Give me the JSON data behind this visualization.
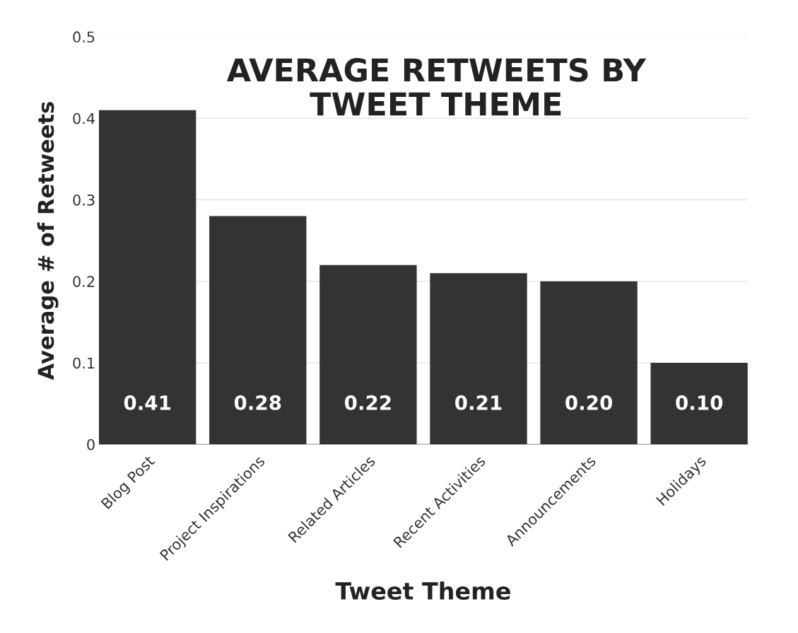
{
  "chart_data": {
    "type": "bar",
    "title": "AVERAGE RETWEETS BY\nTWEET THEME",
    "xlabel": "Tweet Theme",
    "ylabel": "Average # of Retweets",
    "categories": [
      "Blog Post",
      "Project Inspirations",
      "Related Articles",
      "Recent Activities",
      "Announcements",
      "Holidays"
    ],
    "values": [
      0.41,
      0.28,
      0.22,
      0.21,
      0.2,
      0.1
    ],
    "value_labels": [
      "0.41",
      "0.28",
      "0.22",
      "0.21",
      "0.20",
      "0.10"
    ],
    "color": "#333333",
    "ylim": [
      0,
      0.5
    ],
    "yticks": [
      0,
      0.1,
      0.2,
      0.3,
      0.4,
      0.5
    ],
    "grid": "y"
  }
}
